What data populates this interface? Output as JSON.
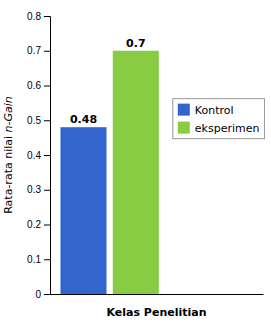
{
  "chart_data": {
    "type": "bar",
    "categories": [
      "Kontrol",
      "eksperimen"
    ],
    "values": [
      0.48,
      0.7
    ],
    "colors": [
      "#3366cc",
      "#88cc44"
    ],
    "xlabel": "Kelas Penelitian",
    "ylabel": "Rata-rata nilai n-Gain",
    "ylim": [
      0,
      0.8
    ],
    "yticks": [
      0,
      0.1,
      0.2,
      0.3,
      0.4,
      0.5,
      0.6,
      0.7,
      0.8
    ],
    "data_labels": true,
    "legend": "right",
    "tick_labels": "y",
    "grid": false
  }
}
